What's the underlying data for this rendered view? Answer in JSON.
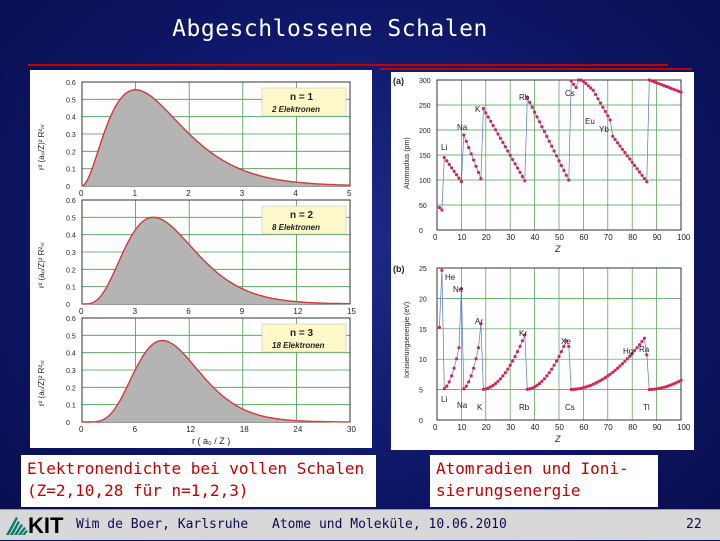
{
  "slide": {
    "title": "Abgeschlossene Schalen",
    "left_caption_line1": "Elektronendichte bei vollen Schalen",
    "left_caption_line2": "(Z=2,10,28 für n=1,2,3)",
    "right_caption_line1": "Atomradien und Ioni-",
    "right_caption_line2": "sierungsenergie",
    "footer_author": "Wim de Boer, Karlsruhe",
    "footer_event": "Atome und Moleküle,  10.06.2010",
    "page_number": "22",
    "logo_text": "KIT"
  },
  "colors": {
    "title": "#ffffff",
    "caption_text": "#c00000",
    "curve": "#d03a3a",
    "fill": "#b4b4b4",
    "legend_bg": "#fff8c8",
    "scatter": "#d0285a",
    "line": "#5577cc"
  },
  "chart_data": [
    {
      "type": "area",
      "label_n": "n = 1",
      "label_e": "2 Elektronen",
      "ylabel": "r² (a₀/Z)² R²ₙₗ",
      "xticks": [
        "0",
        "1",
        "2",
        "3",
        "4",
        "5"
      ],
      "yticks": [
        "0",
        "0.1",
        "0.2",
        "0.3",
        "0.4",
        "0.5",
        "0.6"
      ],
      "xlim": [
        0,
        5
      ],
      "ylim": [
        0,
        0.6
      ]
    },
    {
      "type": "area",
      "label_n": "n = 2",
      "label_e": "8 Elektronen",
      "ylabel": "r² (a₀/Z)² R²ₙₗ",
      "xticks": [
        "0",
        "3",
        "6",
        "9",
        "12",
        "15"
      ],
      "yticks": [
        "0",
        "0.1",
        "0.2",
        "0.3",
        "0.4",
        "0.5",
        "0.6"
      ],
      "xlim": [
        0,
        15
      ],
      "ylim": [
        0,
        0.6
      ]
    },
    {
      "type": "area",
      "label_n": "n = 3",
      "label_e": "18 Elektronen",
      "ylabel": "r² (a₀/Z)² R²ₙₗ",
      "xlabel": "r  ( a₀ / Z )",
      "xticks": [
        "0",
        "6",
        "12",
        "18",
        "24",
        "30"
      ],
      "yticks": [
        "0",
        "0.1",
        "0.2",
        "0.3",
        "0.4",
        "0.5",
        "0.6"
      ],
      "xlim": [
        0,
        30
      ],
      "ylim": [
        0,
        0.6
      ]
    },
    {
      "type": "scatter",
      "panel": "(a)",
      "ylabel": "Atomradius (pm)",
      "xlabel": "Z",
      "xticks": [
        "0",
        "10",
        "20",
        "30",
        "40",
        "50",
        "60",
        "70",
        "80",
        "90",
        "100"
      ],
      "yticks": [
        "0",
        "50",
        "100",
        "150",
        "200",
        "250",
        "300"
      ],
      "xlim": [
        0,
        100
      ],
      "ylim": [
        0,
        300
      ],
      "annotations": [
        "Li",
        "Na",
        "K",
        "Rb",
        "Cs",
        "Eu",
        "Yb"
      ]
    },
    {
      "type": "scatter",
      "panel": "(b)",
      "ylabel": "Ionisierungsenergie (eV)",
      "xlabel": "Z",
      "xticks": [
        "0",
        "10",
        "20",
        "30",
        "40",
        "50",
        "60",
        "70",
        "80",
        "90",
        "100"
      ],
      "yticks": [
        "0",
        "5",
        "10",
        "15",
        "20",
        "25"
      ],
      "xlim": [
        0,
        100
      ],
      "ylim": [
        0,
        25
      ],
      "annotations": [
        "He",
        "Ne",
        "Ar",
        "Kr",
        "Xe",
        "Hg",
        "Ra",
        "Li",
        "Na",
        "K",
        "Rb",
        "Cs",
        "Tl"
      ]
    }
  ]
}
